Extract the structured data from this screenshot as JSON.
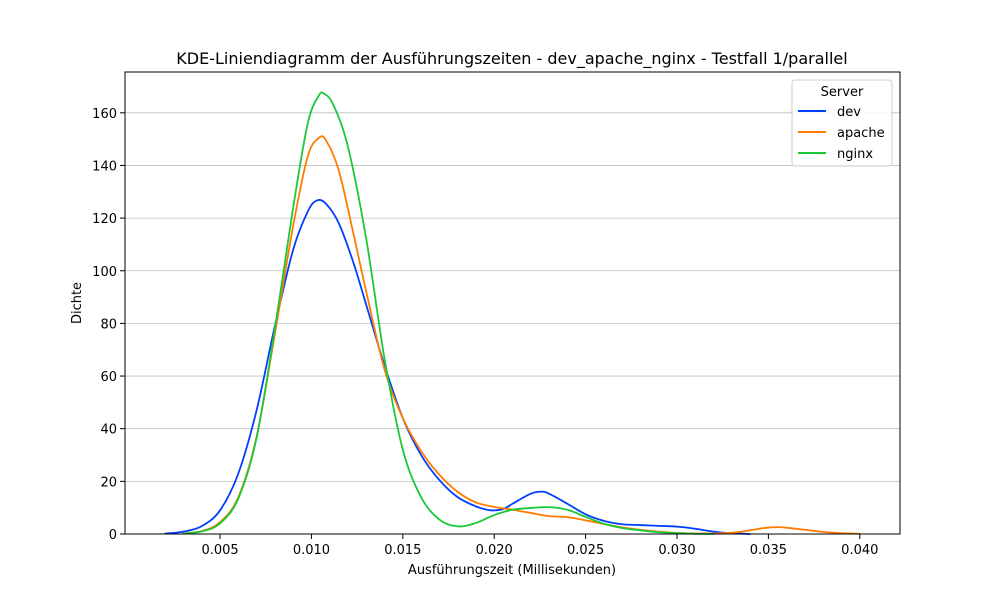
{
  "chart_data": {
    "type": "line",
    "title": "KDE-Liniendiagramm der Ausführungszeiten - dev_apache_nginx - Testfall 1/parallel",
    "xlabel": "Ausführungszeit (Millisekunden)",
    "ylabel": "Dichte",
    "xlim": [
      -0.0002,
      0.0422
    ],
    "ylim": [
      0,
      175.5
    ],
    "x_ticks": [
      0.005,
      0.01,
      0.015,
      0.02,
      0.025,
      0.03,
      0.035,
      0.04
    ],
    "x_tick_labels": [
      "0.005",
      "0.010",
      "0.015",
      "0.020",
      "0.025",
      "0.030",
      "0.035",
      "0.040"
    ],
    "y_ticks": [
      0,
      20,
      40,
      60,
      80,
      100,
      120,
      140,
      160
    ],
    "y_tick_labels": [
      "0",
      "20",
      "40",
      "60",
      "80",
      "100",
      "120",
      "140",
      "160"
    ],
    "grid": "horizontal",
    "legend": {
      "title": "Server",
      "position": "top-right"
    },
    "series": [
      {
        "name": "dev",
        "color": "#023eff",
        "points": [
          [
            0.002,
            0.2
          ],
          [
            0.003,
            0.9
          ],
          [
            0.004,
            3
          ],
          [
            0.005,
            9
          ],
          [
            0.006,
            23
          ],
          [
            0.007,
            47
          ],
          [
            0.008,
            79
          ],
          [
            0.009,
            108
          ],
          [
            0.0098,
            122.5
          ],
          [
            0.0103,
            126.7
          ],
          [
            0.0108,
            125.4
          ],
          [
            0.0115,
            118
          ],
          [
            0.0123,
            103
          ],
          [
            0.013,
            87
          ],
          [
            0.014,
            64
          ],
          [
            0.015,
            44
          ],
          [
            0.016,
            30
          ],
          [
            0.017,
            20.5
          ],
          [
            0.018,
            14
          ],
          [
            0.019,
            10.5
          ],
          [
            0.0198,
            9
          ],
          [
            0.0205,
            9.5
          ],
          [
            0.021,
            11.5
          ],
          [
            0.022,
            15.3
          ],
          [
            0.0226,
            16.1
          ],
          [
            0.023,
            15.3
          ],
          [
            0.024,
            11.5
          ],
          [
            0.025,
            7.5
          ],
          [
            0.026,
            5
          ],
          [
            0.027,
            3.7
          ],
          [
            0.028,
            3.4
          ],
          [
            0.029,
            3.1
          ],
          [
            0.03,
            2.8
          ],
          [
            0.031,
            2
          ],
          [
            0.032,
            0.9
          ],
          [
            0.033,
            0.3
          ],
          [
            0.034,
            0
          ]
        ]
      },
      {
        "name": "apache",
        "color": "#ff7c00",
        "points": [
          [
            0.003,
            0.3
          ],
          [
            0.004,
            1.1
          ],
          [
            0.005,
            4.5
          ],
          [
            0.006,
            14
          ],
          [
            0.007,
            37
          ],
          [
            0.008,
            76
          ],
          [
            0.009,
            117
          ],
          [
            0.0098,
            143.5
          ],
          [
            0.0104,
            150.4
          ],
          [
            0.0108,
            149.5
          ],
          [
            0.0115,
            138
          ],
          [
            0.0123,
            114
          ],
          [
            0.013,
            92
          ],
          [
            0.014,
            62.5
          ],
          [
            0.015,
            44
          ],
          [
            0.016,
            31.5
          ],
          [
            0.017,
            22.5
          ],
          [
            0.018,
            16
          ],
          [
            0.019,
            12
          ],
          [
            0.02,
            10.3
          ],
          [
            0.021,
            9.2
          ],
          [
            0.022,
            8
          ],
          [
            0.023,
            6.8
          ],
          [
            0.024,
            6.4
          ],
          [
            0.025,
            5.2
          ],
          [
            0.026,
            3.8
          ],
          [
            0.027,
            2.5
          ],
          [
            0.028,
            1.6
          ],
          [
            0.029,
            0.9
          ],
          [
            0.03,
            0.4
          ],
          [
            0.031,
            0.2
          ],
          [
            0.032,
            0.2
          ],
          [
            0.033,
            0.5
          ],
          [
            0.034,
            1.4
          ],
          [
            0.0348,
            2.3
          ],
          [
            0.0355,
            2.6
          ],
          [
            0.036,
            2.4
          ],
          [
            0.037,
            1.6
          ],
          [
            0.038,
            0.8
          ],
          [
            0.039,
            0.3
          ],
          [
            0.04,
            0.1
          ]
        ]
      },
      {
        "name": "nginx",
        "color": "#1ac938",
        "points": [
          [
            0.003,
            0.2
          ],
          [
            0.004,
            1
          ],
          [
            0.005,
            4
          ],
          [
            0.006,
            13.5
          ],
          [
            0.007,
            36.5
          ],
          [
            0.008,
            78
          ],
          [
            0.009,
            124
          ],
          [
            0.0098,
            156
          ],
          [
            0.0104,
            166.5
          ],
          [
            0.0107,
            167.2
          ],
          [
            0.0112,
            163
          ],
          [
            0.012,
            147
          ],
          [
            0.013,
            112
          ],
          [
            0.014,
            66.5
          ],
          [
            0.015,
            32
          ],
          [
            0.016,
            14
          ],
          [
            0.017,
            5.5
          ],
          [
            0.018,
            2.9
          ],
          [
            0.019,
            4.2
          ],
          [
            0.02,
            7.2
          ],
          [
            0.021,
            9.2
          ],
          [
            0.022,
            9.9
          ],
          [
            0.023,
            10.2
          ],
          [
            0.024,
            9.2
          ],
          [
            0.025,
            6.5
          ],
          [
            0.026,
            3.9
          ],
          [
            0.027,
            2.3
          ],
          [
            0.028,
            1.4
          ],
          [
            0.029,
            0.7
          ],
          [
            0.03,
            0.3
          ],
          [
            0.031,
            0.1
          ],
          [
            0.032,
            0
          ]
        ]
      }
    ]
  }
}
